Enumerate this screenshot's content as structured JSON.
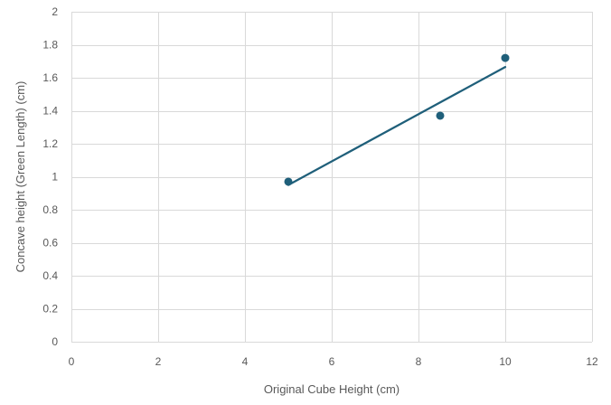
{
  "chart_data": {
    "type": "scatter",
    "title": "",
    "xlabel": "Original Cube Height (cm)",
    "ylabel": "Concave height (Green Length) (cm)",
    "xlim": [
      0,
      12
    ],
    "ylim": [
      0,
      2
    ],
    "xticks": [
      0,
      2,
      4,
      6,
      8,
      10,
      12
    ],
    "yticks": [
      0,
      0.2,
      0.4,
      0.6,
      0.8,
      1,
      1.2,
      1.4,
      1.6,
      1.8,
      2
    ],
    "grid": true,
    "legend": "none",
    "series": [
      {
        "points": [
          {
            "x": 5,
            "y": 0.97
          },
          {
            "x": 8.5,
            "y": 1.37
          },
          {
            "x": 10,
            "y": 1.72
          }
        ],
        "color": "#1f5f7a"
      }
    ],
    "trendline": {
      "type": "linear",
      "from": {
        "x": 5,
        "y": 0.95
      },
      "to": {
        "x": 10,
        "y": 1.665
      },
      "color": "#1f5f7a"
    }
  }
}
